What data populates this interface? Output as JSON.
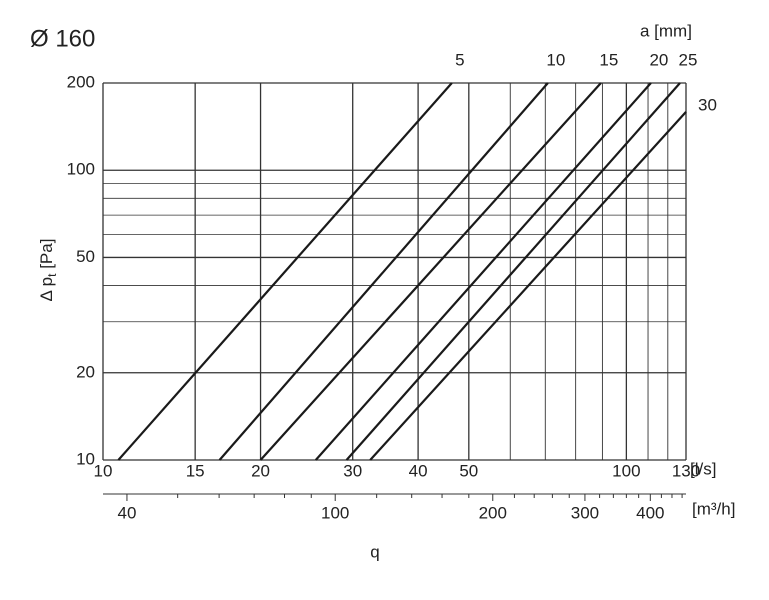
{
  "chart_data": {
    "type": "line",
    "title": "Ø 160",
    "series_axis_label": "a [mm]",
    "ylabel": [
      "Δ p",
      "t",
      " [Pa]"
    ],
    "xlabel": "q",
    "x_unit": "[l/s]",
    "x2_unit": "[m³/h]",
    "log_scale": true,
    "grid": true,
    "color": "#1a1a1a",
    "xlim": [
      10,
      130
    ],
    "xticks": [
      10,
      15,
      20,
      30,
      40,
      50,
      100,
      130
    ],
    "xminor": [
      60,
      70,
      80,
      90,
      110,
      120
    ],
    "ylim": [
      10,
      200
    ],
    "yticks": [
      10,
      20,
      50,
      100,
      200
    ],
    "yminor": [
      30,
      40,
      60,
      70,
      80,
      90
    ],
    "x2lim": [
      36,
      468
    ],
    "x2ticks": [
      40,
      100,
      200,
      300,
      400
    ],
    "x2minor": [
      50,
      60,
      70,
      80,
      90,
      120,
      140,
      160,
      180,
      220,
      240,
      260,
      280,
      320,
      340,
      360,
      380,
      420,
      440,
      460
    ],
    "series": [
      {
        "name": "5",
        "x": [
          10.7,
          46.4
        ],
        "values": [
          10,
          200
        ]
      },
      {
        "name": "10",
        "x": [
          16.7,
          70.8
        ],
        "values": [
          10,
          200
        ]
      },
      {
        "name": "15",
        "x": [
          20.0,
          89.4
        ],
        "values": [
          10,
          200
        ]
      },
      {
        "name": "20",
        "x": [
          25.5,
          111.4
        ],
        "values": [
          10,
          200
        ]
      },
      {
        "name": "25",
        "x": [
          29.2,
          126.6
        ],
        "values": [
          10,
          200
        ]
      },
      {
        "name": "30",
        "x": [
          32.4,
          130
        ],
        "values": [
          10,
          159
        ]
      }
    ]
  }
}
